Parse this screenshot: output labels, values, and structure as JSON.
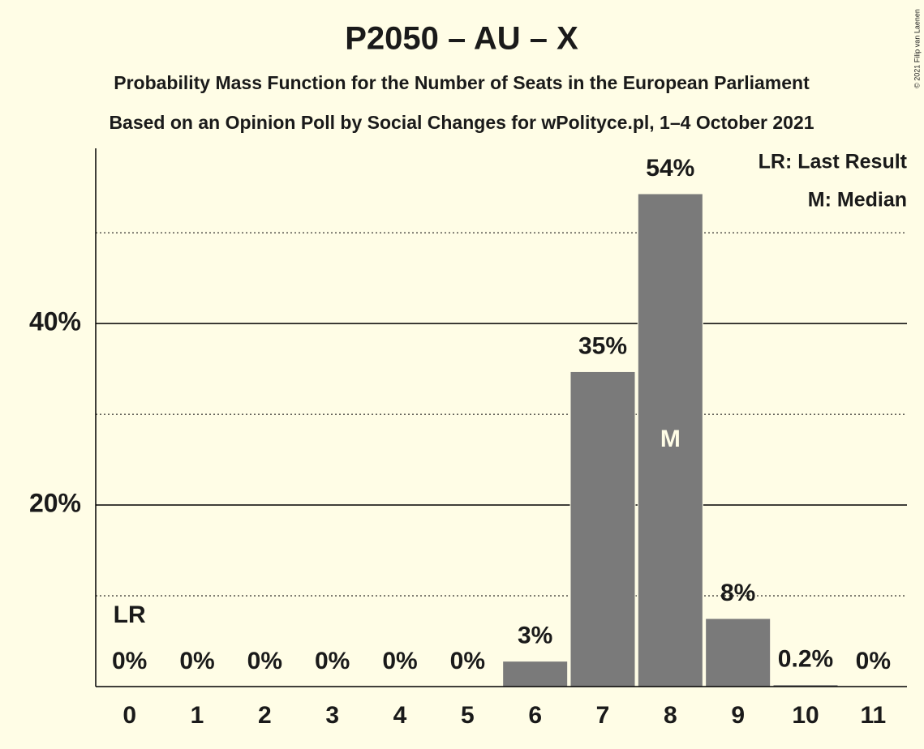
{
  "chart_data": {
    "type": "bar",
    "title": "P2050 – AU – X",
    "subtitle": "Probability Mass Function for the Number of Seats in the European Parliament",
    "subtitle2": "Based on an Opinion Poll by Social Changes for wPolityce.pl, 1–4 October 2021",
    "copyright": "© 2021 Filip van Laenen",
    "categories": [
      "0",
      "1",
      "2",
      "3",
      "4",
      "5",
      "6",
      "7",
      "8",
      "9",
      "10",
      "11"
    ],
    "values": [
      0,
      0,
      0,
      0,
      0,
      0,
      2.8,
      34.7,
      54.3,
      7.5,
      0.2,
      0
    ],
    "value_labels": [
      "0%",
      "0%",
      "0%",
      "0%",
      "0%",
      "0%",
      "3%",
      "35%",
      "54%",
      "8%",
      "0.2%",
      "0%"
    ],
    "color": "#7a7a7a",
    "ylim": [
      0,
      59.3
    ],
    "yticks": [
      {
        "value": 20,
        "label": "20%"
      },
      {
        "value": 40,
        "label": "40%"
      }
    ],
    "minor_yticks": [
      10,
      30,
      50
    ],
    "grid": true,
    "markers": [
      {
        "text": "LR",
        "category": "0",
        "place": "above"
      },
      {
        "text": "M",
        "category": "8",
        "place": "inside"
      }
    ],
    "legend": [
      "LR: Last Result",
      "M: Median"
    ],
    "legend_position": "top-right"
  }
}
